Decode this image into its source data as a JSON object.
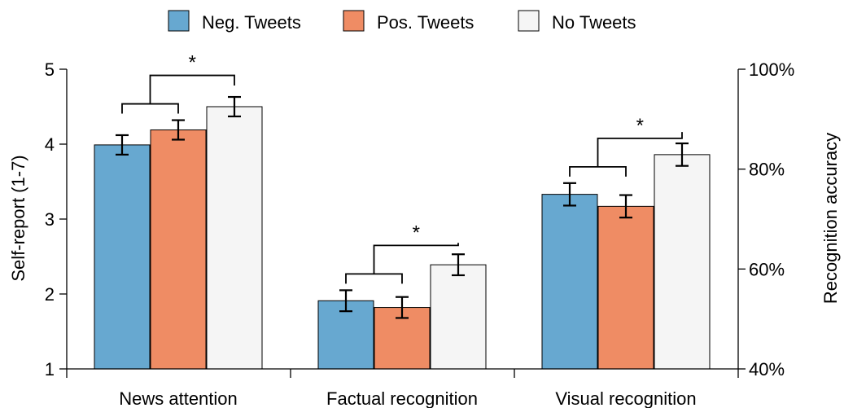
{
  "chart_data": {
    "type": "bar",
    "categories": [
      "News attention",
      "Factual recognition",
      "Visual recognition"
    ],
    "series": [
      {
        "name": "Neg. Tweets",
        "color": "#67a8d0",
        "values": [
          3.99,
          1.91,
          3.33
        ],
        "errors": [
          0.13,
          0.14,
          0.15
        ]
      },
      {
        "name": "Pos. Tweets",
        "color": "#ef8c64",
        "values": [
          4.19,
          1.82,
          3.17
        ],
        "errors": [
          0.13,
          0.14,
          0.15
        ]
      },
      {
        "name": "No Tweets",
        "color": "#f5f5f5",
        "values": [
          4.5,
          2.39,
          3.86
        ],
        "errors": [
          0.13,
          0.14,
          0.15
        ]
      }
    ],
    "ylabel": "Self-report (1-7)",
    "ylim": [
      1,
      5
    ],
    "yticks": [
      "1",
      "2",
      "3",
      "4",
      "5"
    ],
    "y2label": "Recognition accuracy",
    "y2lim": [
      40,
      100
    ],
    "y2ticks": [
      "40%",
      "60%",
      "80%",
      "100%"
    ],
    "significance_label": "*",
    "legend_position": "top-center",
    "grid": false
  }
}
